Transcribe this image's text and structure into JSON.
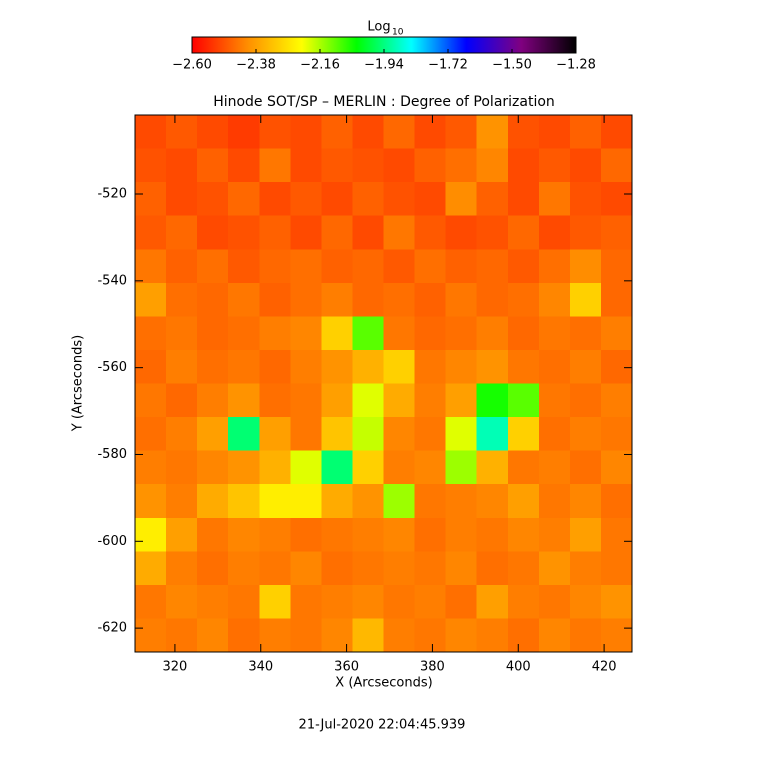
{
  "chart_data": {
    "type": "heatmap",
    "title": "Hinode SOT/SP – MERLIN : Degree of Polarization",
    "x_label": "X (Arcseconds)",
    "y_label": "Y (Arcseconds)",
    "xlim": [
      310.7,
      426.5
    ],
    "ylim": [
      -625.5,
      -501.8
    ],
    "xticks": [
      320,
      340,
      360,
      380,
      400,
      420
    ],
    "yticks": [
      -620,
      -600,
      -580,
      -560,
      -540,
      -520
    ],
    "colorbar": {
      "label": "Log",
      "label_sub": "10",
      "clim": [
        -2.6,
        -1.28
      ],
      "ticks": [
        {
          "value": -2.6,
          "label": "−2.60"
        },
        {
          "value": -2.38,
          "label": "−2.38"
        },
        {
          "value": -2.16,
          "label": "−2.16"
        },
        {
          "value": -1.94,
          "label": "−1.94"
        },
        {
          "value": -1.72,
          "label": "−1.72"
        },
        {
          "value": -1.5,
          "label": "−1.50"
        },
        {
          "value": -1.28,
          "label": "−1.28"
        }
      ],
      "colormap": [
        "#ff0000",
        "#ff8c00",
        "#ffff00",
        "#00ff00",
        "#00ffff",
        "#0000ff",
        "#800080",
        "#000000"
      ]
    },
    "z": [
      [
        -2.5,
        -2.48,
        -2.5,
        -2.52,
        -2.49,
        -2.5,
        -2.47,
        -2.5,
        -2.46,
        -2.5,
        -2.48,
        -2.4,
        -2.49,
        -2.5,
        -2.47,
        -2.5
      ],
      [
        -2.49,
        -2.5,
        -2.47,
        -2.5,
        -2.44,
        -2.5,
        -2.48,
        -2.49,
        -2.5,
        -2.47,
        -2.45,
        -2.42,
        -2.5,
        -2.48,
        -2.5,
        -2.46
      ],
      [
        -2.47,
        -2.5,
        -2.49,
        -2.46,
        -2.5,
        -2.48,
        -2.5,
        -2.47,
        -2.49,
        -2.5,
        -2.41,
        -2.47,
        -2.5,
        -2.44,
        -2.49,
        -2.5
      ],
      [
        -2.48,
        -2.46,
        -2.5,
        -2.49,
        -2.47,
        -2.5,
        -2.46,
        -2.5,
        -2.44,
        -2.48,
        -2.5,
        -2.49,
        -2.46,
        -2.5,
        -2.48,
        -2.47
      ],
      [
        -2.44,
        -2.47,
        -2.45,
        -2.48,
        -2.46,
        -2.45,
        -2.47,
        -2.46,
        -2.48,
        -2.45,
        -2.47,
        -2.46,
        -2.48,
        -2.45,
        -2.41,
        -2.46
      ],
      [
        -2.38,
        -2.45,
        -2.46,
        -2.44,
        -2.47,
        -2.45,
        -2.43,
        -2.46,
        -2.45,
        -2.47,
        -2.44,
        -2.46,
        -2.45,
        -2.42,
        -2.3,
        -2.46
      ],
      [
        -2.45,
        -2.44,
        -2.46,
        -2.45,
        -2.43,
        -2.42,
        -2.3,
        -2.1,
        -2.44,
        -2.46,
        -2.45,
        -2.43,
        -2.46,
        -2.44,
        -2.45,
        -2.43
      ],
      [
        -2.46,
        -2.43,
        -2.45,
        -2.44,
        -2.46,
        -2.43,
        -2.4,
        -2.35,
        -2.3,
        -2.44,
        -2.42,
        -2.4,
        -2.44,
        -2.45,
        -2.43,
        -2.46
      ],
      [
        -2.44,
        -2.46,
        -2.43,
        -2.4,
        -2.45,
        -2.44,
        -2.38,
        -2.2,
        -2.36,
        -2.43,
        -2.38,
        -2.05,
        -2.1,
        -2.44,
        -2.45,
        -2.43
      ],
      [
        -2.45,
        -2.43,
        -2.38,
        -1.95,
        -2.38,
        -2.44,
        -2.32,
        -2.18,
        -2.42,
        -2.44,
        -2.2,
        -1.9,
        -2.3,
        -2.45,
        -2.43,
        -2.44
      ],
      [
        -2.43,
        -2.44,
        -2.42,
        -2.4,
        -2.35,
        -2.2,
        -1.95,
        -2.3,
        -2.43,
        -2.42,
        -2.15,
        -2.35,
        -2.44,
        -2.43,
        -2.45,
        -2.42
      ],
      [
        -2.4,
        -2.43,
        -2.36,
        -2.32,
        -2.25,
        -2.25,
        -2.36,
        -2.4,
        -2.15,
        -2.44,
        -2.43,
        -2.42,
        -2.38,
        -2.44,
        -2.42,
        -2.45
      ],
      [
        -2.25,
        -2.38,
        -2.44,
        -2.42,
        -2.43,
        -2.45,
        -2.44,
        -2.43,
        -2.42,
        -2.45,
        -2.43,
        -2.44,
        -2.42,
        -2.43,
        -2.38,
        -2.44
      ],
      [
        -2.36,
        -2.43,
        -2.45,
        -2.43,
        -2.44,
        -2.42,
        -2.45,
        -2.44,
        -2.43,
        -2.44,
        -2.42,
        -2.45,
        -2.44,
        -2.4,
        -2.43,
        -2.44
      ],
      [
        -2.44,
        -2.42,
        -2.43,
        -2.44,
        -2.3,
        -2.44,
        -2.43,
        -2.42,
        -2.44,
        -2.43,
        -2.45,
        -2.38,
        -2.43,
        -2.44,
        -2.42,
        -2.4
      ],
      [
        -2.43,
        -2.44,
        -2.42,
        -2.45,
        -2.43,
        -2.44,
        -2.42,
        -2.34,
        -2.43,
        -2.44,
        -2.42,
        -2.43,
        -2.45,
        -2.42,
        -2.44,
        -2.43
      ]
    ],
    "annotation": "21-Jul-2020 22:04:45.939"
  }
}
